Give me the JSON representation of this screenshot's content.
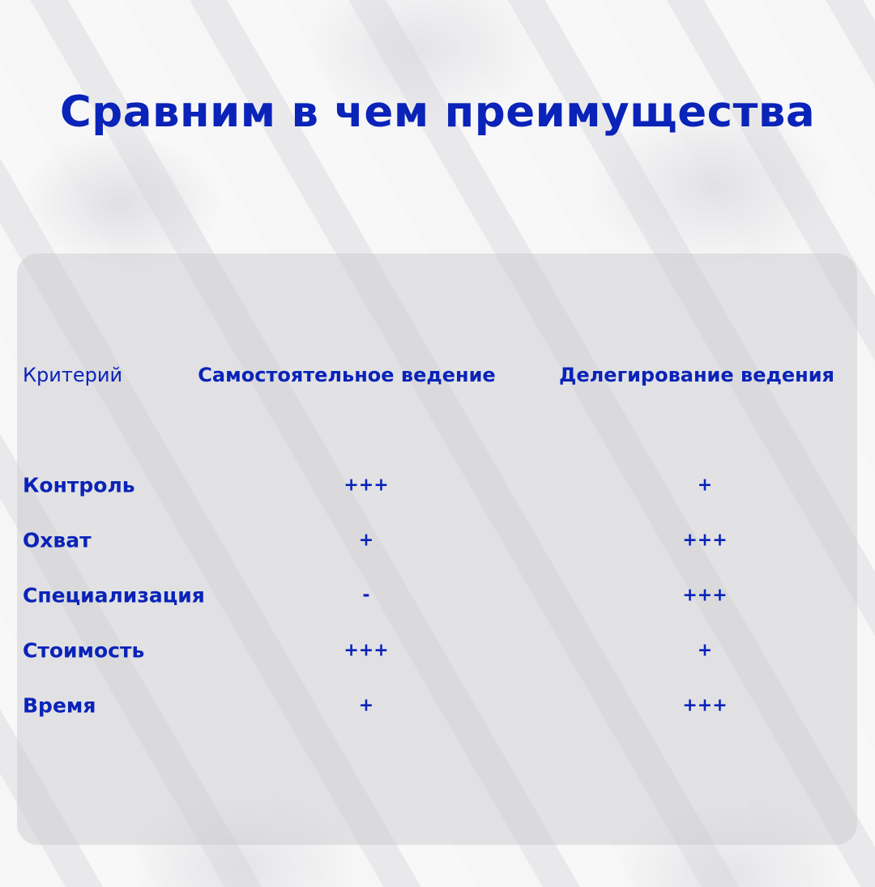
{
  "title": "Сравним в чем преимущества",
  "table": {
    "headers": [
      "Критерий",
      "Самостоятельное ведение",
      "Делегирование ведения"
    ],
    "rows": [
      {
        "criterion": "Контроль",
        "self": "+++",
        "delegated": "+"
      },
      {
        "criterion": "Охват",
        "self": "+",
        "delegated": "+++"
      },
      {
        "criterion": "Специализация",
        "self": "-",
        "delegated": "+++"
      },
      {
        "criterion": "Стоимость",
        "self": "+++",
        "delegated": "+"
      },
      {
        "criterion": "Время",
        "self": "+",
        "delegated": "+++"
      }
    ]
  },
  "colors": {
    "text": "#0a23b8",
    "panel": "#d2d2d6"
  }
}
